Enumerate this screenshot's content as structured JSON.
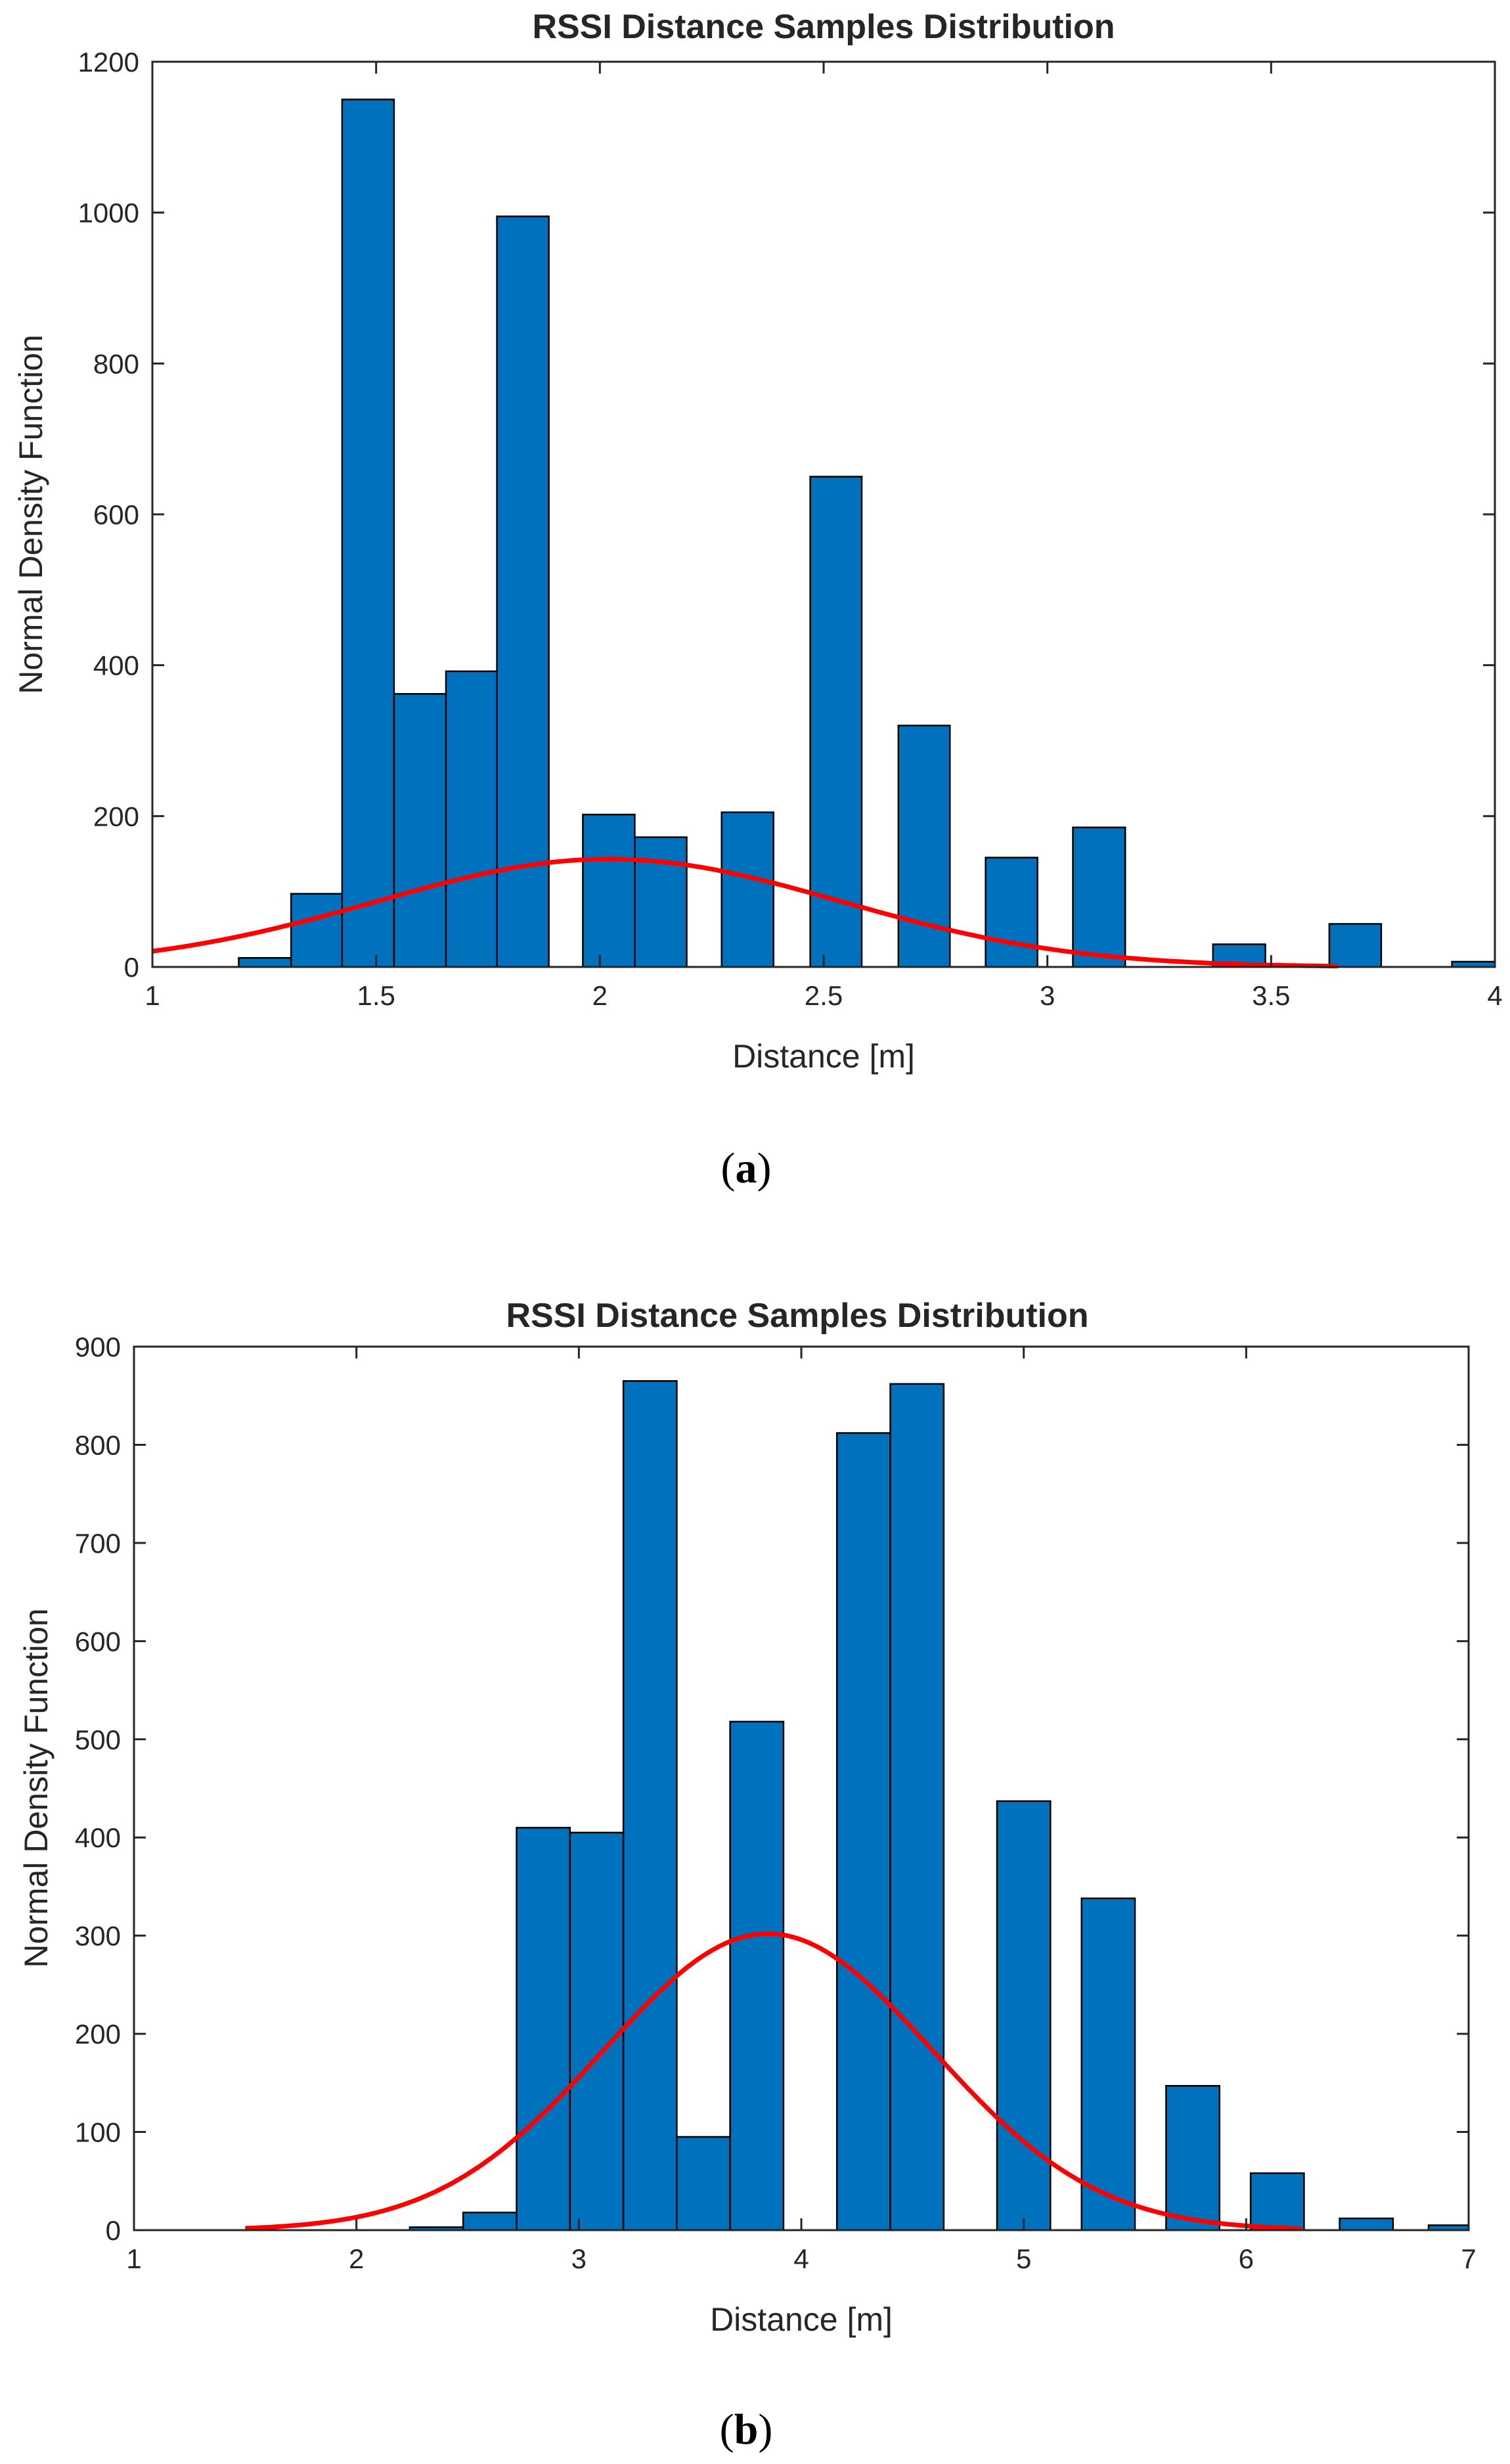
{
  "chart_data": [
    {
      "type": "bar",
      "panel_label": "a",
      "title": "RSSI Distance Samples Distribution",
      "xlabel": "Distance [m]",
      "ylabel": "Normal Density Function",
      "xlim": [
        1,
        4
      ],
      "ylim": [
        0,
        1200
      ],
      "xticks": [
        1,
        1.5,
        2,
        2.5,
        3,
        3.5,
        4
      ],
      "xtick_labels": [
        "1",
        "1.5",
        "2",
        "2.5",
        "3",
        "3.5",
        "4"
      ],
      "yticks": [
        0,
        200,
        400,
        600,
        800,
        1000,
        1200
      ],
      "ytick_labels": [
        "0",
        "200",
        "400",
        "600",
        "800",
        "1000",
        "1200"
      ],
      "bar_color": "#0072BD",
      "curve_color": "#FF0000",
      "bins": [
        {
          "x0": 1.193,
          "x1": 1.31,
          "value": 12
        },
        {
          "x0": 1.31,
          "x1": 1.424,
          "value": 97
        },
        {
          "x0": 1.424,
          "x1": 1.54,
          "value": 1150
        },
        {
          "x0": 1.54,
          "x1": 1.656,
          "value": 362
        },
        {
          "x0": 1.656,
          "x1": 1.77,
          "value": 392
        },
        {
          "x0": 1.77,
          "x1": 1.886,
          "value": 995
        },
        {
          "x0": 1.886,
          "x1": 1.962,
          "value": 0
        },
        {
          "x0": 1.962,
          "x1": 2.078,
          "value": 202
        },
        {
          "x0": 2.078,
          "x1": 2.194,
          "value": 172
        },
        {
          "x0": 2.194,
          "x1": 2.272,
          "value": 0
        },
        {
          "x0": 2.272,
          "x1": 2.388,
          "value": 205
        },
        {
          "x0": 2.388,
          "x1": 2.47,
          "value": 0
        },
        {
          "x0": 2.47,
          "x1": 2.585,
          "value": 650
        },
        {
          "x0": 2.585,
          "x1": 2.667,
          "value": 0
        },
        {
          "x0": 2.667,
          "x1": 2.782,
          "value": 320
        },
        {
          "x0": 2.782,
          "x1": 2.862,
          "value": 0
        },
        {
          "x0": 2.862,
          "x1": 2.978,
          "value": 145
        },
        {
          "x0": 2.978,
          "x1": 3.057,
          "value": 0
        },
        {
          "x0": 3.057,
          "x1": 3.174,
          "value": 185
        },
        {
          "x0": 3.174,
          "x1": 3.37,
          "value": 0
        },
        {
          "x0": 3.37,
          "x1": 3.487,
          "value": 30
        },
        {
          "x0": 3.487,
          "x1": 3.63,
          "value": 0
        },
        {
          "x0": 3.63,
          "x1": 3.746,
          "value": 57
        },
        {
          "x0": 3.746,
          "x1": 3.904,
          "value": 0
        },
        {
          "x0": 3.904,
          "x1": 4.02,
          "value": 7
        }
      ],
      "fit": {
        "type": "normal",
        "mean": 2.02,
        "sd": 0.52,
        "peak": 143,
        "x_range": [
          1.0,
          3.65
        ]
      }
    },
    {
      "type": "bar",
      "panel_label": "b",
      "title": "RSSI Distance Samples Distribution",
      "xlabel": "Distance [m]",
      "ylabel": "Normal Density Function",
      "xlim": [
        1,
        7
      ],
      "ylim": [
        0,
        900
      ],
      "xticks": [
        1,
        2,
        3,
        4,
        5,
        6,
        7
      ],
      "xtick_labels": [
        "1",
        "2",
        "3",
        "4",
        "5",
        "6",
        "7"
      ],
      "yticks": [
        0,
        100,
        200,
        300,
        400,
        500,
        600,
        700,
        800,
        900
      ],
      "ytick_labels": [
        "0",
        "100",
        "200",
        "300",
        "400",
        "500",
        "600",
        "700",
        "800",
        "900"
      ],
      "bar_color": "#0072BD",
      "curve_color": "#FF0000",
      "bins": [
        {
          "x0": 2.24,
          "x1": 2.48,
          "value": 3
        },
        {
          "x0": 2.48,
          "x1": 2.72,
          "value": 18
        },
        {
          "x0": 2.72,
          "x1": 2.96,
          "value": 410
        },
        {
          "x0": 2.96,
          "x1": 3.2,
          "value": 405
        },
        {
          "x0": 3.2,
          "x1": 3.44,
          "value": 865
        },
        {
          "x0": 3.44,
          "x1": 3.68,
          "value": 95
        },
        {
          "x0": 3.68,
          "x1": 3.92,
          "value": 518
        },
        {
          "x0": 3.92,
          "x1": 4.16,
          "value": 0
        },
        {
          "x0": 4.16,
          "x1": 4.4,
          "value": 812
        },
        {
          "x0": 4.4,
          "x1": 4.64,
          "value": 862
        },
        {
          "x0": 4.64,
          "x1": 4.88,
          "value": 0
        },
        {
          "x0": 4.88,
          "x1": 5.12,
          "value": 437
        },
        {
          "x0": 5.12,
          "x1": 5.26,
          "value": 0
        },
        {
          "x0": 5.26,
          "x1": 5.5,
          "value": 338
        },
        {
          "x0": 5.5,
          "x1": 5.64,
          "value": 0
        },
        {
          "x0": 5.64,
          "x1": 5.88,
          "value": 147
        },
        {
          "x0": 5.88,
          "x1": 6.02,
          "value": 0
        },
        {
          "x0": 6.02,
          "x1": 6.26,
          "value": 58
        },
        {
          "x0": 6.26,
          "x1": 6.42,
          "value": 0
        },
        {
          "x0": 6.42,
          "x1": 6.66,
          "value": 12
        },
        {
          "x0": 6.66,
          "x1": 6.82,
          "value": 0
        },
        {
          "x0": 6.82,
          "x1": 7.06,
          "value": 5
        }
      ],
      "fit": {
        "type": "normal",
        "mean": 3.85,
        "sd": 0.74,
        "peak": 302,
        "x_range": [
          1.5,
          6.25
        ]
      }
    }
  ]
}
